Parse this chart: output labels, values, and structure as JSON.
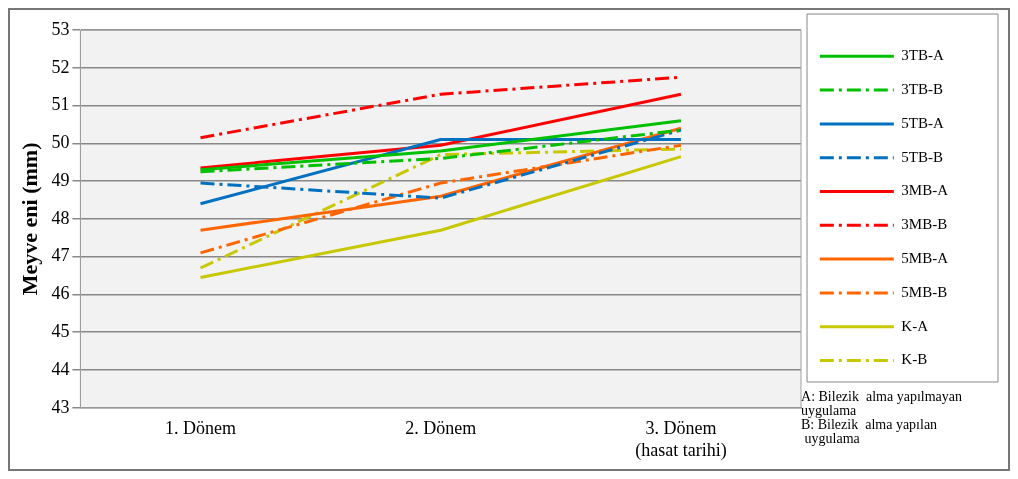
{
  "chart_data": {
    "type": "line",
    "ylabel": "Meyve eni (mm)",
    "categories": [
      "1. Dönem",
      "2. Dönem",
      "3. Dönem\n(hasat tarihi)"
    ],
    "ylim": [
      43,
      53
    ],
    "yticks": [
      43,
      44,
      45,
      46,
      47,
      48,
      49,
      50,
      51,
      52,
      53
    ],
    "grid": "y",
    "legend": "right",
    "marker": "none",
    "series": [
      {
        "name": "3TB-A",
        "color": "#00c000",
        "line_style": "solid",
        "values": [
          49.3,
          49.8,
          50.6
        ]
      },
      {
        "name": "3TB-B",
        "color": "#00c000",
        "line_style": "dashdot",
        "values": [
          49.25,
          49.6,
          50.35
        ]
      },
      {
        "name": "5TB-A",
        "color": "#0070c0",
        "line_style": "solid",
        "values": [
          48.4,
          50.1,
          50.1
        ]
      },
      {
        "name": "5TB-B",
        "color": "#0070c0",
        "line_style": "dashdot",
        "values": [
          48.95,
          48.55,
          50.35
        ]
      },
      {
        "name": "3MB-A",
        "color": "#ff0000",
        "line_style": "solid",
        "values": [
          49.35,
          49.95,
          51.3
        ]
      },
      {
        "name": "3MB-B",
        "color": "#ff0000",
        "line_style": "dashdot",
        "values": [
          50.15,
          51.3,
          51.75
        ]
      },
      {
        "name": "5MB-A",
        "color": "#ff6600",
        "line_style": "solid",
        "values": [
          47.7,
          48.6,
          50.4
        ]
      },
      {
        "name": "5MB-B",
        "color": "#ff6600",
        "line_style": "dashdot",
        "values": [
          47.1,
          48.95,
          49.95
        ]
      },
      {
        "name": "K-A",
        "color": "#c8c800",
        "line_style": "solid",
        "values": [
          46.45,
          47.7,
          49.65
        ]
      },
      {
        "name": "K-B",
        "color": "#c8c800",
        "line_style": "dashdot",
        "values": [
          46.7,
          49.7,
          49.85
        ]
      }
    ],
    "annotations": [
      "A: Bilezik  alma yapılmayan\nuygulama\nB: Bilezik  alma yapılan\n uygulama"
    ]
  }
}
